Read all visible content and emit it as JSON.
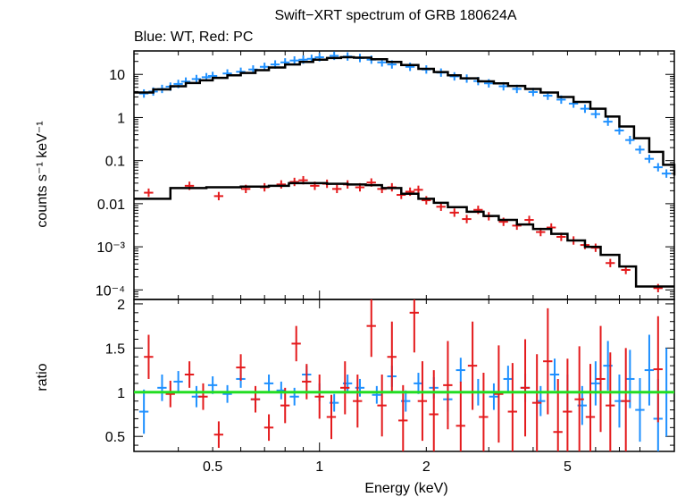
{
  "chart_data": [
    {
      "type": "scatter",
      "title": "Swift−XRT spectrum of GRB 180624A",
      "subtitle": "Blue: WT, Red: PC",
      "ylabel": "counts s⁻¹ keV⁻¹",
      "xscale": "log",
      "yscale": "log",
      "xlim": [
        0.3,
        10
      ],
      "ylim": [
        6e-05,
        35
      ],
      "y_ticks": [
        {
          "value": 10,
          "label": "10"
        },
        {
          "value": 1,
          "label": "1"
        },
        {
          "value": 0.1,
          "label": "0.1"
        },
        {
          "value": 0.01,
          "label": "0.01"
        },
        {
          "value": 0.001,
          "label": "10⁻³"
        },
        {
          "value": 0.0001,
          "label": "10⁻⁴"
        }
      ],
      "series": [
        {
          "color": "#1e90ff",
          "kind": "errorbars",
          "x": [
            0.32,
            0.34,
            0.36,
            0.38,
            0.4,
            0.42,
            0.45,
            0.48,
            0.5,
            0.55,
            0.6,
            0.65,
            0.7,
            0.75,
            0.8,
            0.85,
            0.9,
            0.95,
            1.0,
            1.1,
            1.2,
            1.3,
            1.4,
            1.5,
            1.6,
            1.8,
            2.0,
            2.2,
            2.4,
            2.6,
            2.8,
            3.0,
            3.3,
            3.6,
            4.0,
            4.4,
            4.8,
            5.2,
            5.6,
            6.0,
            6.5,
            7.0,
            7.5,
            8.0,
            8.5,
            9.0,
            9.5
          ],
          "y": [
            3.6,
            4.0,
            4.6,
            5.2,
            6.0,
            6.8,
            7.8,
            8.6,
            9.2,
            10.5,
            11.5,
            13,
            15,
            17,
            19,
            21,
            22,
            23,
            25,
            27,
            26,
            24,
            22,
            19,
            17,
            15,
            13,
            11,
            9,
            8,
            7,
            6.2,
            5.3,
            4.6,
            3.9,
            3.2,
            2.6,
            2.1,
            1.6,
            1.2,
            0.8,
            0.5,
            0.3,
            0.18,
            0.11,
            0.07,
            0.05
          ]
        },
        {
          "color": "#000000",
          "kind": "model-step",
          "x": [
            0.3,
            0.34,
            0.38,
            0.42,
            0.46,
            0.5,
            0.55,
            0.6,
            0.66,
            0.72,
            0.8,
            0.88,
            0.96,
            1.05,
            1.15,
            1.25,
            1.4,
            1.55,
            1.7,
            1.9,
            2.1,
            2.3,
            2.5,
            2.8,
            3.1,
            3.4,
            3.8,
            4.2,
            4.7,
            5.2,
            5.8,
            6.4,
            7.0,
            7.7,
            8.5,
            9.3,
            10
          ],
          "y": [
            3.8,
            4.5,
            5.3,
            6.3,
            7.3,
            8.3,
            9.5,
            10.8,
            12.5,
            14.5,
            17,
            19.5,
            22,
            24,
            25,
            24.5,
            22.5,
            19.5,
            16.5,
            13.5,
            11.3,
            9.5,
            8.1,
            6.9,
            6.2,
            5.4,
            4.6,
            3.8,
            3.0,
            2.3,
            1.6,
            1.05,
            0.62,
            0.33,
            0.16,
            0.08,
            0.045
          ]
        },
        {
          "color": "#e41a1c",
          "kind": "errorbars",
          "x": [
            0.33,
            0.43,
            0.52,
            0.62,
            0.7,
            0.78,
            0.85,
            0.9,
            0.97,
            1.05,
            1.12,
            1.2,
            1.3,
            1.4,
            1.5,
            1.6,
            1.7,
            1.8,
            1.9,
            2.0,
            2.2,
            2.4,
            2.6,
            2.8,
            3.0,
            3.3,
            3.6,
            3.9,
            4.2,
            4.5,
            4.8,
            5.2,
            5.6,
            6.0,
            6.6,
            7.3,
            9.0
          ],
          "y": [
            0.018,
            0.026,
            0.015,
            0.022,
            0.024,
            0.028,
            0.032,
            0.035,
            0.026,
            0.029,
            0.022,
            0.028,
            0.024,
            0.031,
            0.022,
            0.024,
            0.016,
            0.019,
            0.021,
            0.012,
            0.0085,
            0.0062,
            0.0044,
            0.0072,
            0.0051,
            0.0038,
            0.0031,
            0.0042,
            0.0022,
            0.0028,
            0.0017,
            0.0014,
            0.0011,
            0.00095,
            0.00042,
            0.00029,
            0.00011
          ]
        },
        {
          "color": "#000000",
          "kind": "model-step",
          "x": [
            0.3,
            0.38,
            0.48,
            0.6,
            0.72,
            0.82,
            0.92,
            1.05,
            1.2,
            1.35,
            1.5,
            1.7,
            1.9,
            2.1,
            2.3,
            2.6,
            2.9,
            3.2,
            3.6,
            4.0,
            4.5,
            5.0,
            5.6,
            6.2,
            7.0,
            7.8,
            8.8,
            10
          ],
          "y": [
            0.013,
            0.023,
            0.024,
            0.025,
            0.026,
            0.03,
            0.03,
            0.029,
            0.028,
            0.027,
            0.023,
            0.017,
            0.013,
            0.0105,
            0.0083,
            0.0065,
            0.0052,
            0.0042,
            0.0033,
            0.0026,
            0.002,
            0.0014,
            0.001,
            0.00065,
            0.00035,
            0.00012,
            0.00012,
            0.00012
          ]
        }
      ]
    },
    {
      "type": "scatter",
      "xlabel": "Energy (keV)",
      "ylabel": "ratio",
      "xscale": "log",
      "xlim": [
        0.3,
        10
      ],
      "ylim": [
        0.33,
        2.05
      ],
      "x_ticks": [
        {
          "value": 0.5,
          "label": "0.5"
        },
        {
          "value": 1,
          "label": "1"
        },
        {
          "value": 2,
          "label": "2"
        },
        {
          "value": 5,
          "label": "5"
        }
      ],
      "y_ticks": [
        {
          "value": 0.5,
          "label": "0.5"
        },
        {
          "value": 1,
          "label": "1"
        },
        {
          "value": 1.5,
          "label": "1.5"
        },
        {
          "value": 2,
          "label": "2"
        }
      ],
      "reference_line": {
        "y": 1,
        "color": "#22dd22"
      },
      "series": [
        {
          "color": "#1e90ff",
          "kind": "errorbars",
          "x": [
            0.32,
            0.36,
            0.4,
            0.45,
            0.5,
            0.55,
            0.6,
            0.66,
            0.72,
            0.78,
            0.85,
            0.92,
            1.0,
            1.1,
            1.2,
            1.3,
            1.45,
            1.6,
            1.75,
            1.9,
            2.1,
            2.3,
            2.5,
            2.8,
            3.1,
            3.4,
            3.8,
            4.2,
            4.6,
            5.0,
            5.5,
            6.0,
            6.5,
            7.0,
            7.5,
            8.0,
            8.5,
            9.0,
            9.5
          ],
          "y": [
            0.78,
            1.05,
            1.12,
            0.95,
            1.08,
            0.98,
            1.15,
            0.92,
            1.1,
            1.02,
            0.95,
            1.2,
            1.0,
            0.88,
            1.1,
            1.05,
            0.97,
            1.18,
            0.9,
            1.1,
            1.05,
            0.92,
            1.25,
            1.0,
            0.95,
            1.15,
            1.05,
            0.9,
            1.2,
            1.0,
            0.85,
            1.1,
            1.3,
            0.9,
            1.15,
            0.8,
            1.25,
            0.7,
            1.0
          ],
          "err": [
            0.25,
            0.15,
            0.12,
            0.12,
            0.1,
            0.1,
            0.1,
            0.1,
            0.1,
            0.1,
            0.1,
            0.1,
            0.1,
            0.1,
            0.1,
            0.1,
            0.1,
            0.12,
            0.12,
            0.12,
            0.12,
            0.14,
            0.14,
            0.15,
            0.15,
            0.15,
            0.16,
            0.17,
            0.18,
            0.2,
            0.22,
            0.25,
            0.28,
            0.3,
            0.33,
            0.36,
            0.4,
            0.45,
            0.5
          ]
        },
        {
          "color": "#e41a1c",
          "kind": "errorbars",
          "x": [
            0.33,
            0.38,
            0.43,
            0.47,
            0.52,
            0.6,
            0.66,
            0.72,
            0.8,
            0.86,
            0.92,
            1.0,
            1.08,
            1.18,
            1.28,
            1.4,
            1.5,
            1.6,
            1.72,
            1.85,
            1.95,
            2.1,
            2.3,
            2.5,
            2.7,
            2.9,
            3.2,
            3.5,
            3.8,
            4.1,
            4.4,
            4.7,
            5.0,
            5.4,
            5.8,
            6.2,
            6.6,
            7.3,
            9.0
          ],
          "y": [
            1.4,
            0.98,
            1.2,
            0.95,
            0.52,
            1.28,
            0.92,
            0.6,
            0.85,
            1.55,
            1.12,
            0.95,
            0.72,
            1.05,
            0.9,
            1.75,
            0.85,
            1.4,
            0.68,
            1.9,
            0.9,
            0.75,
            1.08,
            0.62,
            1.3,
            0.72,
            0.98,
            0.78,
            1.05,
            0.88,
            1.35,
            0.55,
            0.78,
            0.92,
            0.72,
            1.15,
            0.85,
            0.9,
            1.26
          ],
          "err": [
            0.25,
            0.15,
            0.15,
            0.15,
            0.15,
            0.15,
            0.15,
            0.15,
            0.2,
            0.2,
            0.2,
            0.25,
            0.25,
            0.3,
            0.3,
            0.35,
            0.35,
            0.4,
            0.4,
            0.45,
            0.45,
            0.5,
            0.5,
            0.5,
            0.5,
            0.5,
            0.55,
            0.55,
            0.55,
            0.55,
            0.6,
            0.6,
            0.6,
            0.6,
            0.6,
            0.6,
            0.6,
            0.6,
            0.6
          ]
        }
      ]
    }
  ]
}
